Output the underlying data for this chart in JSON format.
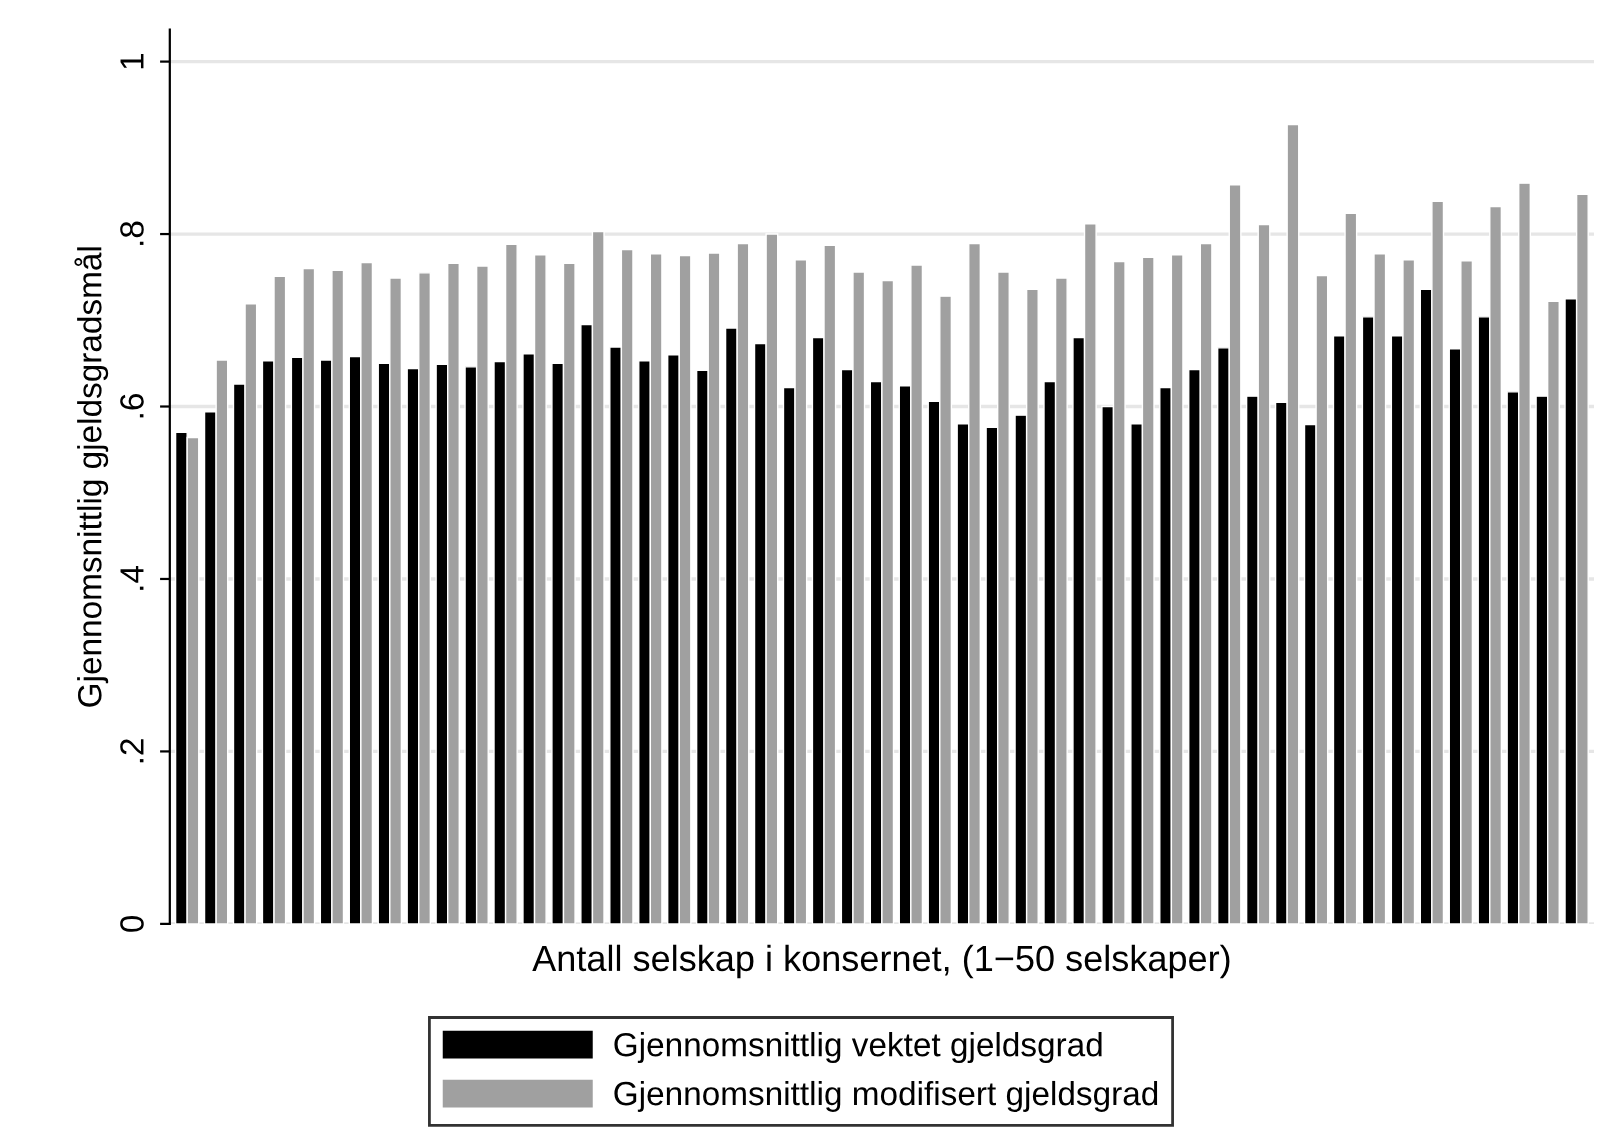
{
  "chart_data": {
    "type": "bar",
    "xlabel": "Antall selskap i konsernet, (1−50 selskaper)",
    "ylabel": "Gjennomsnittlig gjeldsgradsmål",
    "categories": [
      null,
      null,
      null,
      null,
      null,
      null,
      null,
      null,
      null,
      null,
      null,
      null,
      null,
      null,
      null,
      null,
      null,
      null,
      null,
      null,
      null,
      null,
      null,
      null,
      null,
      null,
      null,
      null,
      null,
      null,
      null,
      null,
      null,
      null,
      null,
      null,
      null,
      null,
      null,
      null,
      null,
      null,
      null,
      null,
      null,
      null,
      null,
      null,
      null
    ],
    "series": [
      {
        "name": "Gjennomsnittlig vektet gjeldsgrad",
        "color": "#000000",
        "values": [
          0.57,
          0.594,
          0.626,
          0.653,
          0.657,
          0.654,
          0.658,
          0.65,
          0.644,
          0.649,
          0.646,
          0.652,
          0.661,
          0.65,
          0.695,
          0.669,
          0.653,
          0.66,
          0.642,
          0.691,
          0.673,
          0.622,
          0.68,
          0.643,
          0.629,
          0.624,
          0.606,
          0.58,
          0.576,
          0.59,
          0.629,
          0.68,
          0.6,
          0.58,
          0.622,
          0.643,
          0.668,
          0.612,
          0.605,
          0.579,
          0.682,
          0.704,
          0.682,
          0.736,
          0.667,
          0.704,
          0.617,
          0.612,
          0.725
        ]
      },
      {
        "name": "Gjennomsnittlig modifisert gjeldsgrad",
        "color": "#a0a0a0",
        "values": [
          0.564,
          0.654,
          0.719,
          0.751,
          0.76,
          0.758,
          0.767,
          0.749,
          0.755,
          0.766,
          0.763,
          0.788,
          0.776,
          0.766,
          0.803,
          0.782,
          0.777,
          0.775,
          0.778,
          0.789,
          0.8,
          0.77,
          0.787,
          0.756,
          0.746,
          0.764,
          0.728,
          0.789,
          0.756,
          0.736,
          0.749,
          0.812,
          0.768,
          0.773,
          0.776,
          0.789,
          0.857,
          0.811,
          0.927,
          0.752,
          0.824,
          0.777,
          0.77,
          0.838,
          0.769,
          0.832,
          0.859,
          0.722,
          0.846
        ]
      }
    ],
    "ylim": [
      0,
      1.037
    ],
    "yticks": [
      0,
      {
        "value": 0.2,
        "label": ".2"
      },
      {
        "value": 0.4,
        "label": ".4"
      },
      {
        "value": 0.6,
        "label": ".6"
      },
      {
        "value": 0.8,
        "label": ".8"
      },
      1
    ],
    "grid": "y",
    "legend": "bottom"
  }
}
